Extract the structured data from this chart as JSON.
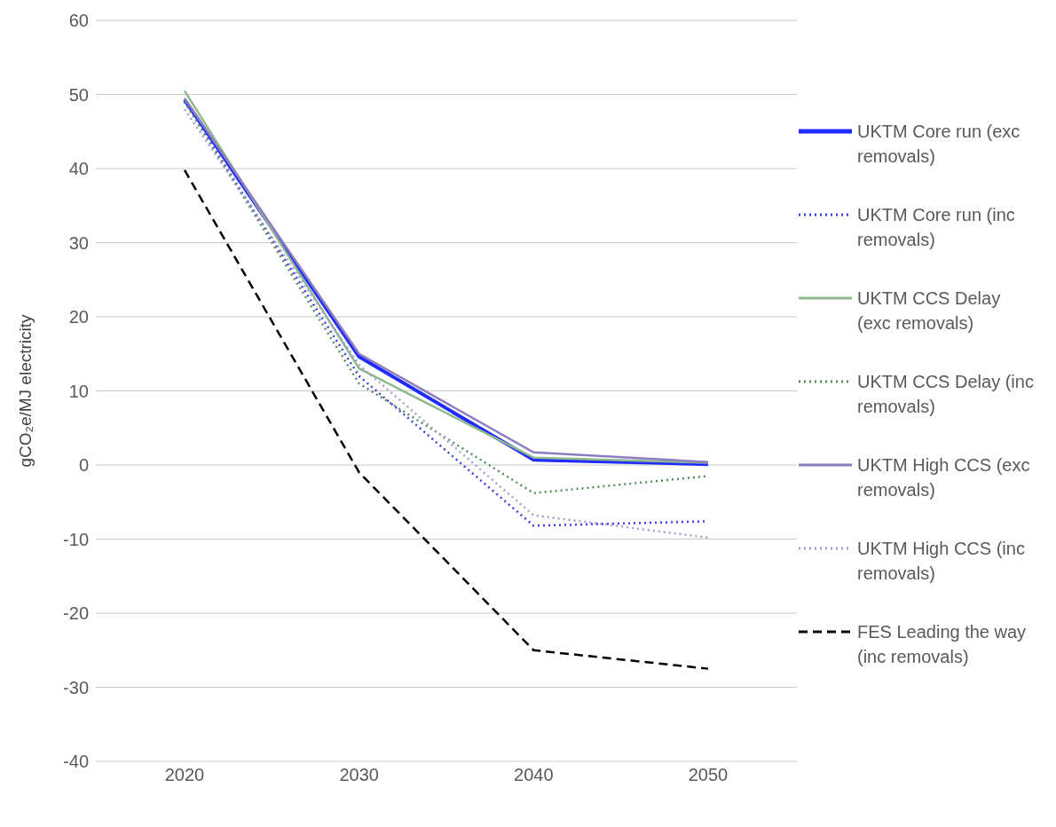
{
  "chart_data": {
    "type": "line",
    "ylabel": "gCO₂e/MJ electricity",
    "categories": [
      "2020",
      "2030",
      "2040",
      "2050"
    ],
    "ylim": [
      -40,
      60
    ],
    "yticks": [
      -40,
      -30,
      -20,
      -10,
      0,
      10,
      20,
      30,
      40,
      50,
      60
    ],
    "grid": "y",
    "legend": "right",
    "marker": "none",
    "series": [
      {
        "name": "UKTM Core run (exc removals)",
        "color": "#1f2bff",
        "line_style": "solid",
        "values": [
          49.3,
          14.6,
          0.7,
          0.1
        ]
      },
      {
        "name": "UKTM Core run (inc removals)",
        "color": "#3b3bef",
        "line_style": "dotted",
        "values": [
          49,
          12,
          -8.2,
          -7.6
        ]
      },
      {
        "name": "UKTM CCS Delay (exc removals)",
        "color": "#8fb88c",
        "line_style": "solid",
        "values": [
          50.5,
          13,
          1,
          0.3
        ]
      },
      {
        "name": "UKTM CCS Delay (inc removals)",
        "color": "#4f8f5c",
        "line_style": "dotted",
        "values": [
          49,
          11,
          -3.8,
          -1.5
        ]
      },
      {
        "name": "UKTM High CCS (exc removals)",
        "color": "#8e7cc3",
        "line_style": "solid",
        "values": [
          49.5,
          15,
          1.7,
          0.4
        ]
      },
      {
        "name": "UKTM High CCS (inc removals)",
        "color": "#a89acc",
        "line_style": "dotted",
        "values": [
          48,
          13.5,
          -6.8,
          -9.8
        ]
      },
      {
        "name": "FES Leading the way (inc removals)",
        "color": "#000000",
        "line_style": "dashed",
        "values": [
          39.8,
          -1,
          -25,
          -27.5
        ]
      }
    ]
  }
}
